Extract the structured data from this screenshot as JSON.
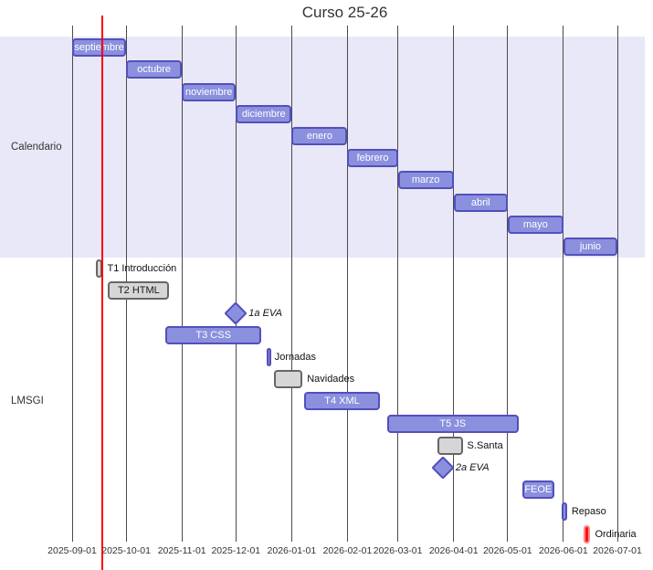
{
  "chart_data": {
    "type": "gantt",
    "title": "Curso 25-26",
    "x_axis": {
      "start": "2025-09-01",
      "end": "2026-07-01",
      "ticks": [
        "2025-09-01",
        "2025-10-01",
        "2025-11-01",
        "2025-12-01",
        "2026-01-01",
        "2026-02-01",
        "2026-03-01",
        "2026-04-01",
        "2026-05-01",
        "2026-06-01",
        "2026-07-01"
      ]
    },
    "today_marker": "2025-09-18",
    "sections": [
      {
        "name": "Calendario",
        "banded": true,
        "tasks": [
          {
            "label": "septiembre",
            "start": "2025-09-01",
            "end": "2025-10-01",
            "style": "purple",
            "label_pos": "inside"
          },
          {
            "label": "octubre",
            "start": "2025-10-01",
            "end": "2025-11-01",
            "style": "purple",
            "label_pos": "inside"
          },
          {
            "label": "noviembre",
            "start": "2025-11-01",
            "end": "2025-12-01",
            "style": "purple",
            "label_pos": "inside"
          },
          {
            "label": "diciembre",
            "start": "2025-12-01",
            "end": "2026-01-01",
            "style": "purple",
            "label_pos": "inside"
          },
          {
            "label": "enero",
            "start": "2026-01-01",
            "end": "2026-02-01",
            "style": "purple",
            "label_pos": "inside"
          },
          {
            "label": "febrero",
            "start": "2026-02-01",
            "end": "2026-03-01",
            "style": "purple",
            "label_pos": "inside"
          },
          {
            "label": "marzo",
            "start": "2026-03-01",
            "end": "2026-04-01",
            "style": "purple",
            "label_pos": "inside"
          },
          {
            "label": "abril",
            "start": "2026-04-01",
            "end": "2026-05-01",
            "style": "purple",
            "label_pos": "inside"
          },
          {
            "label": "mayo",
            "start": "2026-05-01",
            "end": "2026-06-01",
            "style": "purple",
            "label_pos": "inside"
          },
          {
            "label": "junio",
            "start": "2026-06-01",
            "end": "2026-07-01",
            "style": "purple",
            "label_pos": "inside"
          }
        ]
      },
      {
        "name": "LMSGI",
        "banded": false,
        "tasks": [
          {
            "label": "T1 Introducción",
            "start": "2025-09-14",
            "end": "2025-09-18",
            "style": "done",
            "label_pos": "right"
          },
          {
            "label": "T2 HTML",
            "start": "2025-09-21",
            "end": "2025-10-25",
            "style": "done",
            "label_pos": "inside"
          },
          {
            "label": "1a EVA",
            "milestone": true,
            "start": "2025-12-01",
            "style": "purple",
            "label_pos": "right",
            "italic": true
          },
          {
            "label": "T3 CSS",
            "start": "2025-10-23",
            "end": "2025-12-15",
            "style": "purple",
            "label_pos": "inside"
          },
          {
            "label": "Jornadas",
            "start": "2025-12-18",
            "end": "2025-12-20",
            "style": "purple",
            "label_pos": "right"
          },
          {
            "label": "Navidades",
            "start": "2025-12-22",
            "end": "2026-01-07",
            "style": "done",
            "label_pos": "right"
          },
          {
            "label": "T4 XML",
            "start": "2026-01-08",
            "end": "2026-02-19",
            "style": "purple",
            "label_pos": "inside"
          },
          {
            "label": "T5 JS",
            "start": "2026-02-23",
            "end": "2026-05-07",
            "style": "purple",
            "label_pos": "inside"
          },
          {
            "label": "S.Santa",
            "start": "2026-03-23",
            "end": "2026-04-06",
            "style": "done",
            "label_pos": "right"
          },
          {
            "label": "2a EVA",
            "milestone": true,
            "start": "2026-03-26",
            "style": "purple",
            "label_pos": "right",
            "italic": true
          },
          {
            "label": "FEOE",
            "start": "2026-05-09",
            "end": "2026-05-27",
            "style": "purple",
            "label_pos": "inside"
          },
          {
            "label": "Repaso",
            "start": "2026-05-31",
            "end": "2026-06-03",
            "style": "purple",
            "label_pos": "right"
          },
          {
            "label": "Ordinaria",
            "start": "2026-06-12",
            "end": "2026-06-16",
            "style": "crit",
            "label_pos": "right"
          }
        ]
      }
    ]
  },
  "colors": {
    "task_fill": "#8a90dd",
    "task_border": "#534fbc",
    "done_fill": "#d6d6d6",
    "done_border": "#666666",
    "crit_fill": "#ff1111",
    "crit_border": "#ff8888",
    "section_band": "#e8e8f8",
    "today_line": "#ff0000",
    "grid_line": "#4b4b4b",
    "text_dark": "#333333",
    "text_light": "#ffffff"
  }
}
